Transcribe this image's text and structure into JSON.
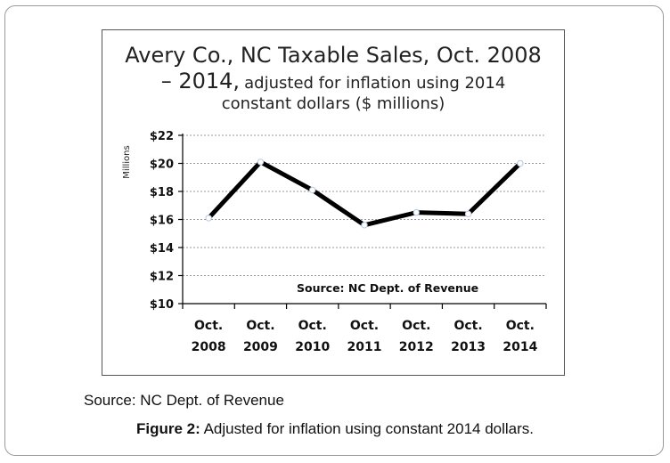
{
  "chart_data": {
    "type": "line",
    "title_line1": "Avery Co., NC Taxable Sales, Oct. 2008",
    "title_line2_big": "– 2014,",
    "title_line2_small": "adjusted for inflation using 2014",
    "title_line3": "constant dollars ($ millions)",
    "ylabel": "Millions",
    "xlabel": "",
    "categories": [
      {
        "month": "Oct.",
        "year": "2008"
      },
      {
        "month": "Oct.",
        "year": "2009"
      },
      {
        "month": "Oct.",
        "year": "2010"
      },
      {
        "month": "Oct.",
        "year": "2011"
      },
      {
        "month": "Oct.",
        "year": "2012"
      },
      {
        "month": "Oct.",
        "year": "2013"
      },
      {
        "month": "Oct.",
        "year": "2014"
      }
    ],
    "values": [
      16.1,
      20.1,
      18.1,
      15.6,
      16.5,
      16.4,
      20.0
    ],
    "ylim": [
      10,
      22
    ],
    "yticks": [
      "$10",
      "$12",
      "$14",
      "$16",
      "$18",
      "$20",
      "$22"
    ],
    "ytick_values": [
      10,
      12,
      14,
      16,
      18,
      20,
      22
    ],
    "grid": true,
    "annotation": "Source: NC Dept. of Revenue",
    "line_color": "#000000"
  },
  "source_text": "Source: NC Dept. of Revenue",
  "caption": {
    "label": "Figure 2:",
    "text": "Adjusted for inflation using constant 2014 dollars."
  }
}
